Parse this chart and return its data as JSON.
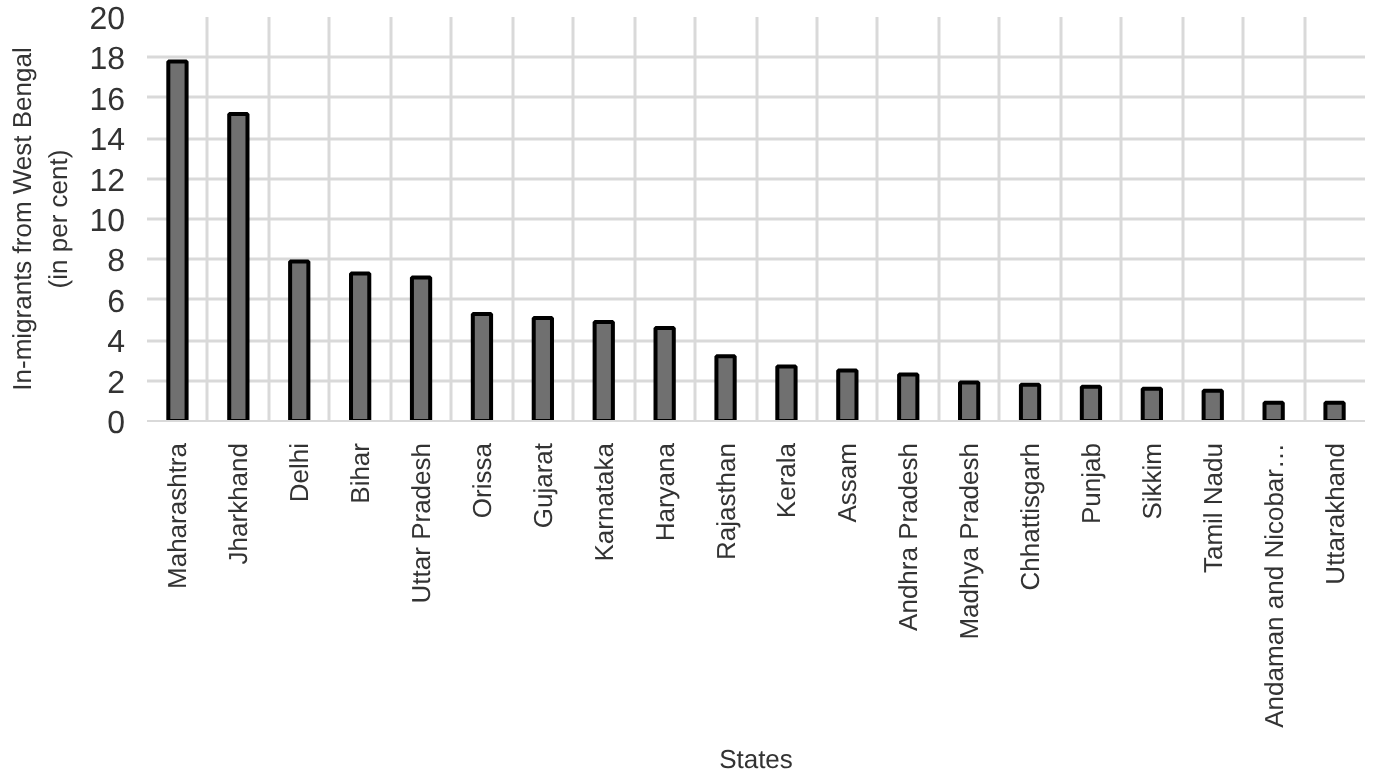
{
  "chart_data": {
    "type": "bar",
    "xlabel": "States",
    "ylabel": "In-migrants from West Bengal\n(in per cent)",
    "categories": [
      "Maharashtra",
      "Jharkhand",
      "Delhi",
      "Bihar",
      "Uttar Pradesh",
      "Orissa",
      "Gujarat",
      "Karnataka",
      "Haryana",
      "Rajasthan",
      "Kerala",
      "Assam",
      "Andhra Pradesh",
      "Madhya Pradesh",
      "Chhattisgarh",
      "Punjab",
      "Sikkim",
      "Tamil Nadu",
      "Andaman and Nicobar…",
      "Uttarakhand"
    ],
    "values": [
      17.8,
      15.2,
      7.9,
      7.3,
      7.1,
      5.3,
      5.1,
      4.9,
      4.6,
      3.2,
      2.7,
      2.5,
      2.3,
      1.9,
      1.8,
      1.7,
      1.6,
      1.5,
      0.9,
      0.9
    ],
    "color": "#707070",
    "ylim": [
      0,
      20
    ],
    "yticks": [
      0,
      2,
      4,
      6,
      8,
      10,
      12,
      14,
      16,
      18,
      20
    ],
    "grid": true
  }
}
